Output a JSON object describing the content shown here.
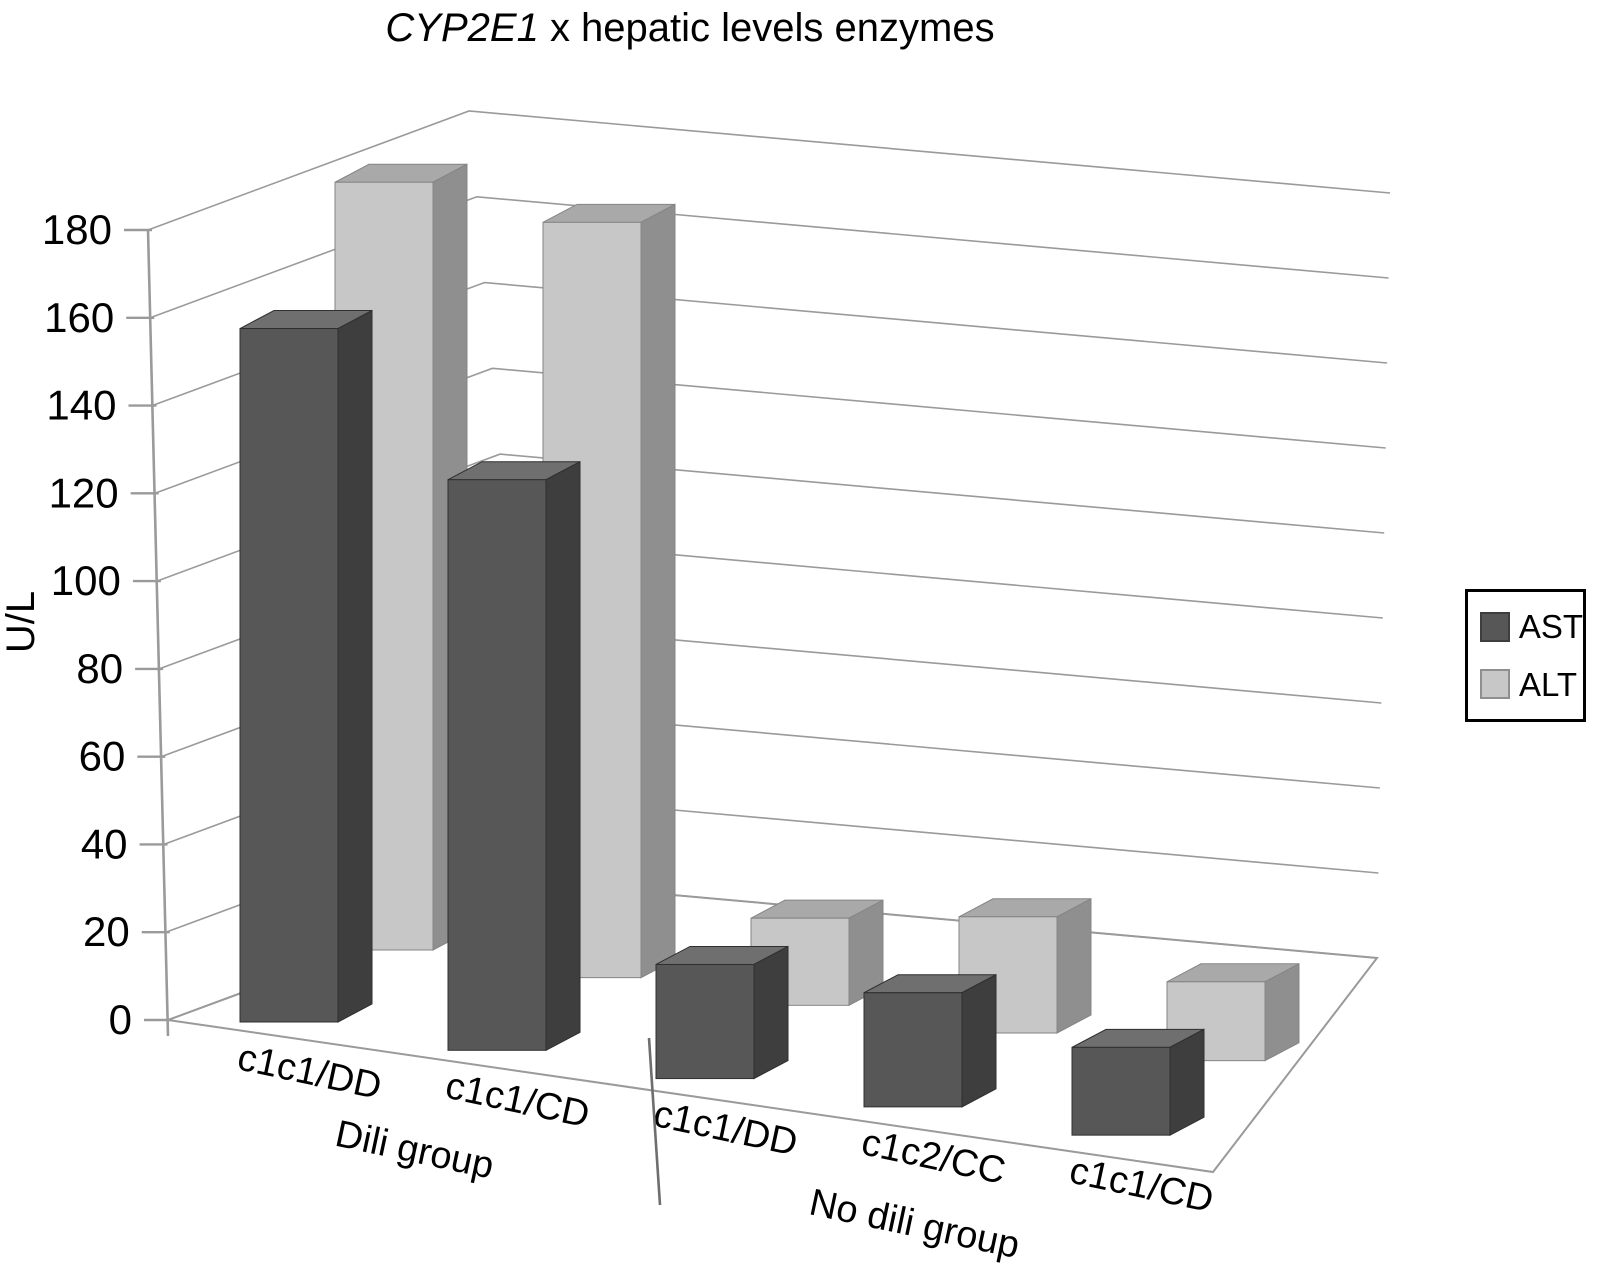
{
  "title": {
    "italic_part": "CYP2E1",
    "rest_part": " x hepatic levels enzymes"
  },
  "y_axis": {
    "label": "U/L",
    "min": 0,
    "max": 180,
    "step": 20
  },
  "legend": {
    "position": "right",
    "ast_label": "AST",
    "alt_label": "ALT"
  },
  "x_axis": {
    "group_separator": true,
    "groups": [
      {
        "label": "Dili group",
        "categories": [
          "c1c1/DD",
          "c1c1/CD"
        ]
      },
      {
        "label": "No dili group",
        "categories": [
          "c1c1/DD",
          "c1c2/CC",
          "c1c1/CD"
        ]
      }
    ]
  },
  "chart_data": {
    "type": "bar",
    "projection": "3d-perspective",
    "title": "CYP2E1 x hepatic levels enzymes",
    "ylabel": "U/L",
    "ylim": [
      0,
      180
    ],
    "ytick_step": 20,
    "yticks": [
      0,
      20,
      40,
      60,
      80,
      100,
      120,
      140,
      160,
      180
    ],
    "grid": true,
    "background": "#ffffff",
    "legend_position": "right",
    "categories": [
      "c1c1/DD",
      "c1c1/CD",
      "c1c1/DD",
      "c1c2/CC",
      "c1c1/CD"
    ],
    "group_of_category": [
      "Dili group",
      "Dili group",
      "No dili group",
      "No dili group",
      "No dili group"
    ],
    "groups": [
      {
        "label": "Dili group",
        "category_indexes": [
          0,
          1
        ]
      },
      {
        "label": "No dili group",
        "category_indexes": [
          2,
          3,
          4
        ]
      }
    ],
    "series": [
      {
        "name": "AST",
        "values": [
          158,
          130,
          26,
          26,
          20
        ],
        "color_front": "#575757",
        "color_top": "#6f6f6f",
        "color_side": "#3e3e3e",
        "color_edge": "#2f2f2f"
      },
      {
        "name": "ALT",
        "values": [
          185,
          182,
          21,
          28,
          19
        ],
        "color_front": "#c7c7c7",
        "color_top": "#a9a9a9",
        "color_side": "#8f8f8f",
        "color_edge": "#858585"
      }
    ],
    "axis_color": "#9a9a9a",
    "gridline_color": "#9a9a9a",
    "separator_color": "#6e6e6e",
    "text_color": "#000000"
  }
}
